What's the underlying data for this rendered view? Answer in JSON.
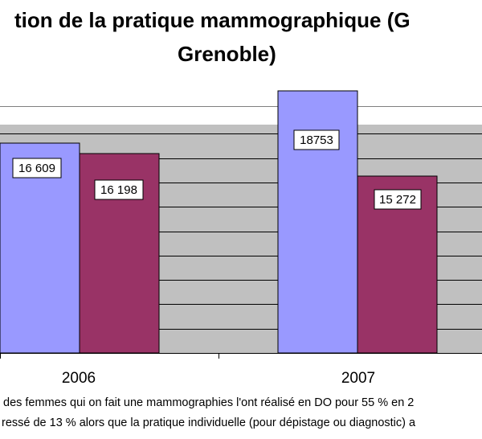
{
  "title": {
    "line1": "tion de la pratique mammographique (G",
    "line2": "Grenoble)"
  },
  "chart_data": {
    "type": "bar",
    "categories": [
      "2006",
      "2007"
    ],
    "series": [
      {
        "values": [
          16609,
          18753
        ],
        "labels": [
          "16 609",
          "18753"
        ],
        "color": "#9999ff"
      },
      {
        "values": [
          16198,
          15272
        ],
        "labels": [
          "16 198",
          "15 272"
        ],
        "color": "#993366"
      }
    ],
    "ylim": [
      8000,
      20000
    ],
    "grid": true,
    "gridline_step": 1000
  },
  "footer": {
    "line1": "des femmes qui on fait une mammographies l'ont réalisé en DO pour 55 % en 2",
    "line2": "ressé de 13 % alors que la pratique individuelle (pour dépistage ou diagnostic) a"
  },
  "colors": {
    "plot_bg": "#c0c0c0",
    "frame": "#808080",
    "grid": "#000000"
  }
}
